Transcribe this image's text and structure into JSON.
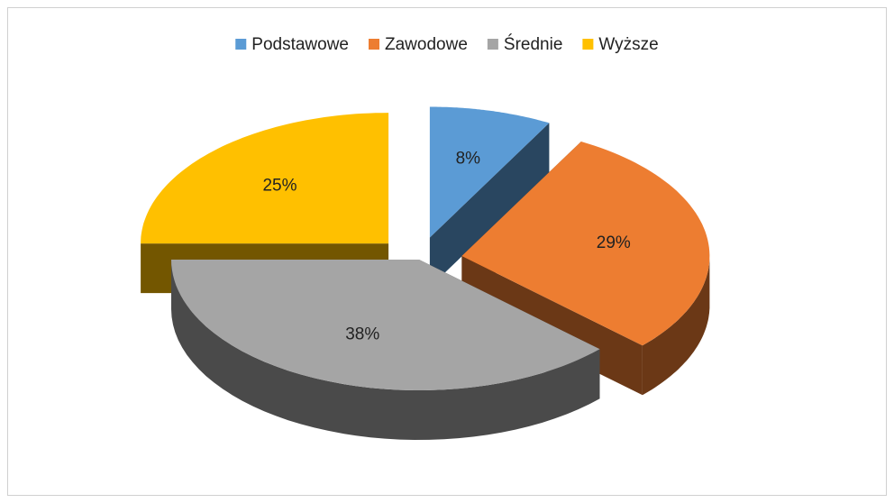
{
  "chart_data": {
    "type": "pie",
    "categories": [
      "Podstawowe",
      "Zawodowe",
      "Średnie",
      "Wyższe"
    ],
    "values": [
      8,
      29,
      38,
      25
    ],
    "value_labels": [
      "8%",
      "29%",
      "38%",
      "25%"
    ],
    "colors": [
      "#5b9bd5",
      "#ed7d31",
      "#a5a5a5",
      "#ffc000"
    ],
    "legend": "top"
  }
}
